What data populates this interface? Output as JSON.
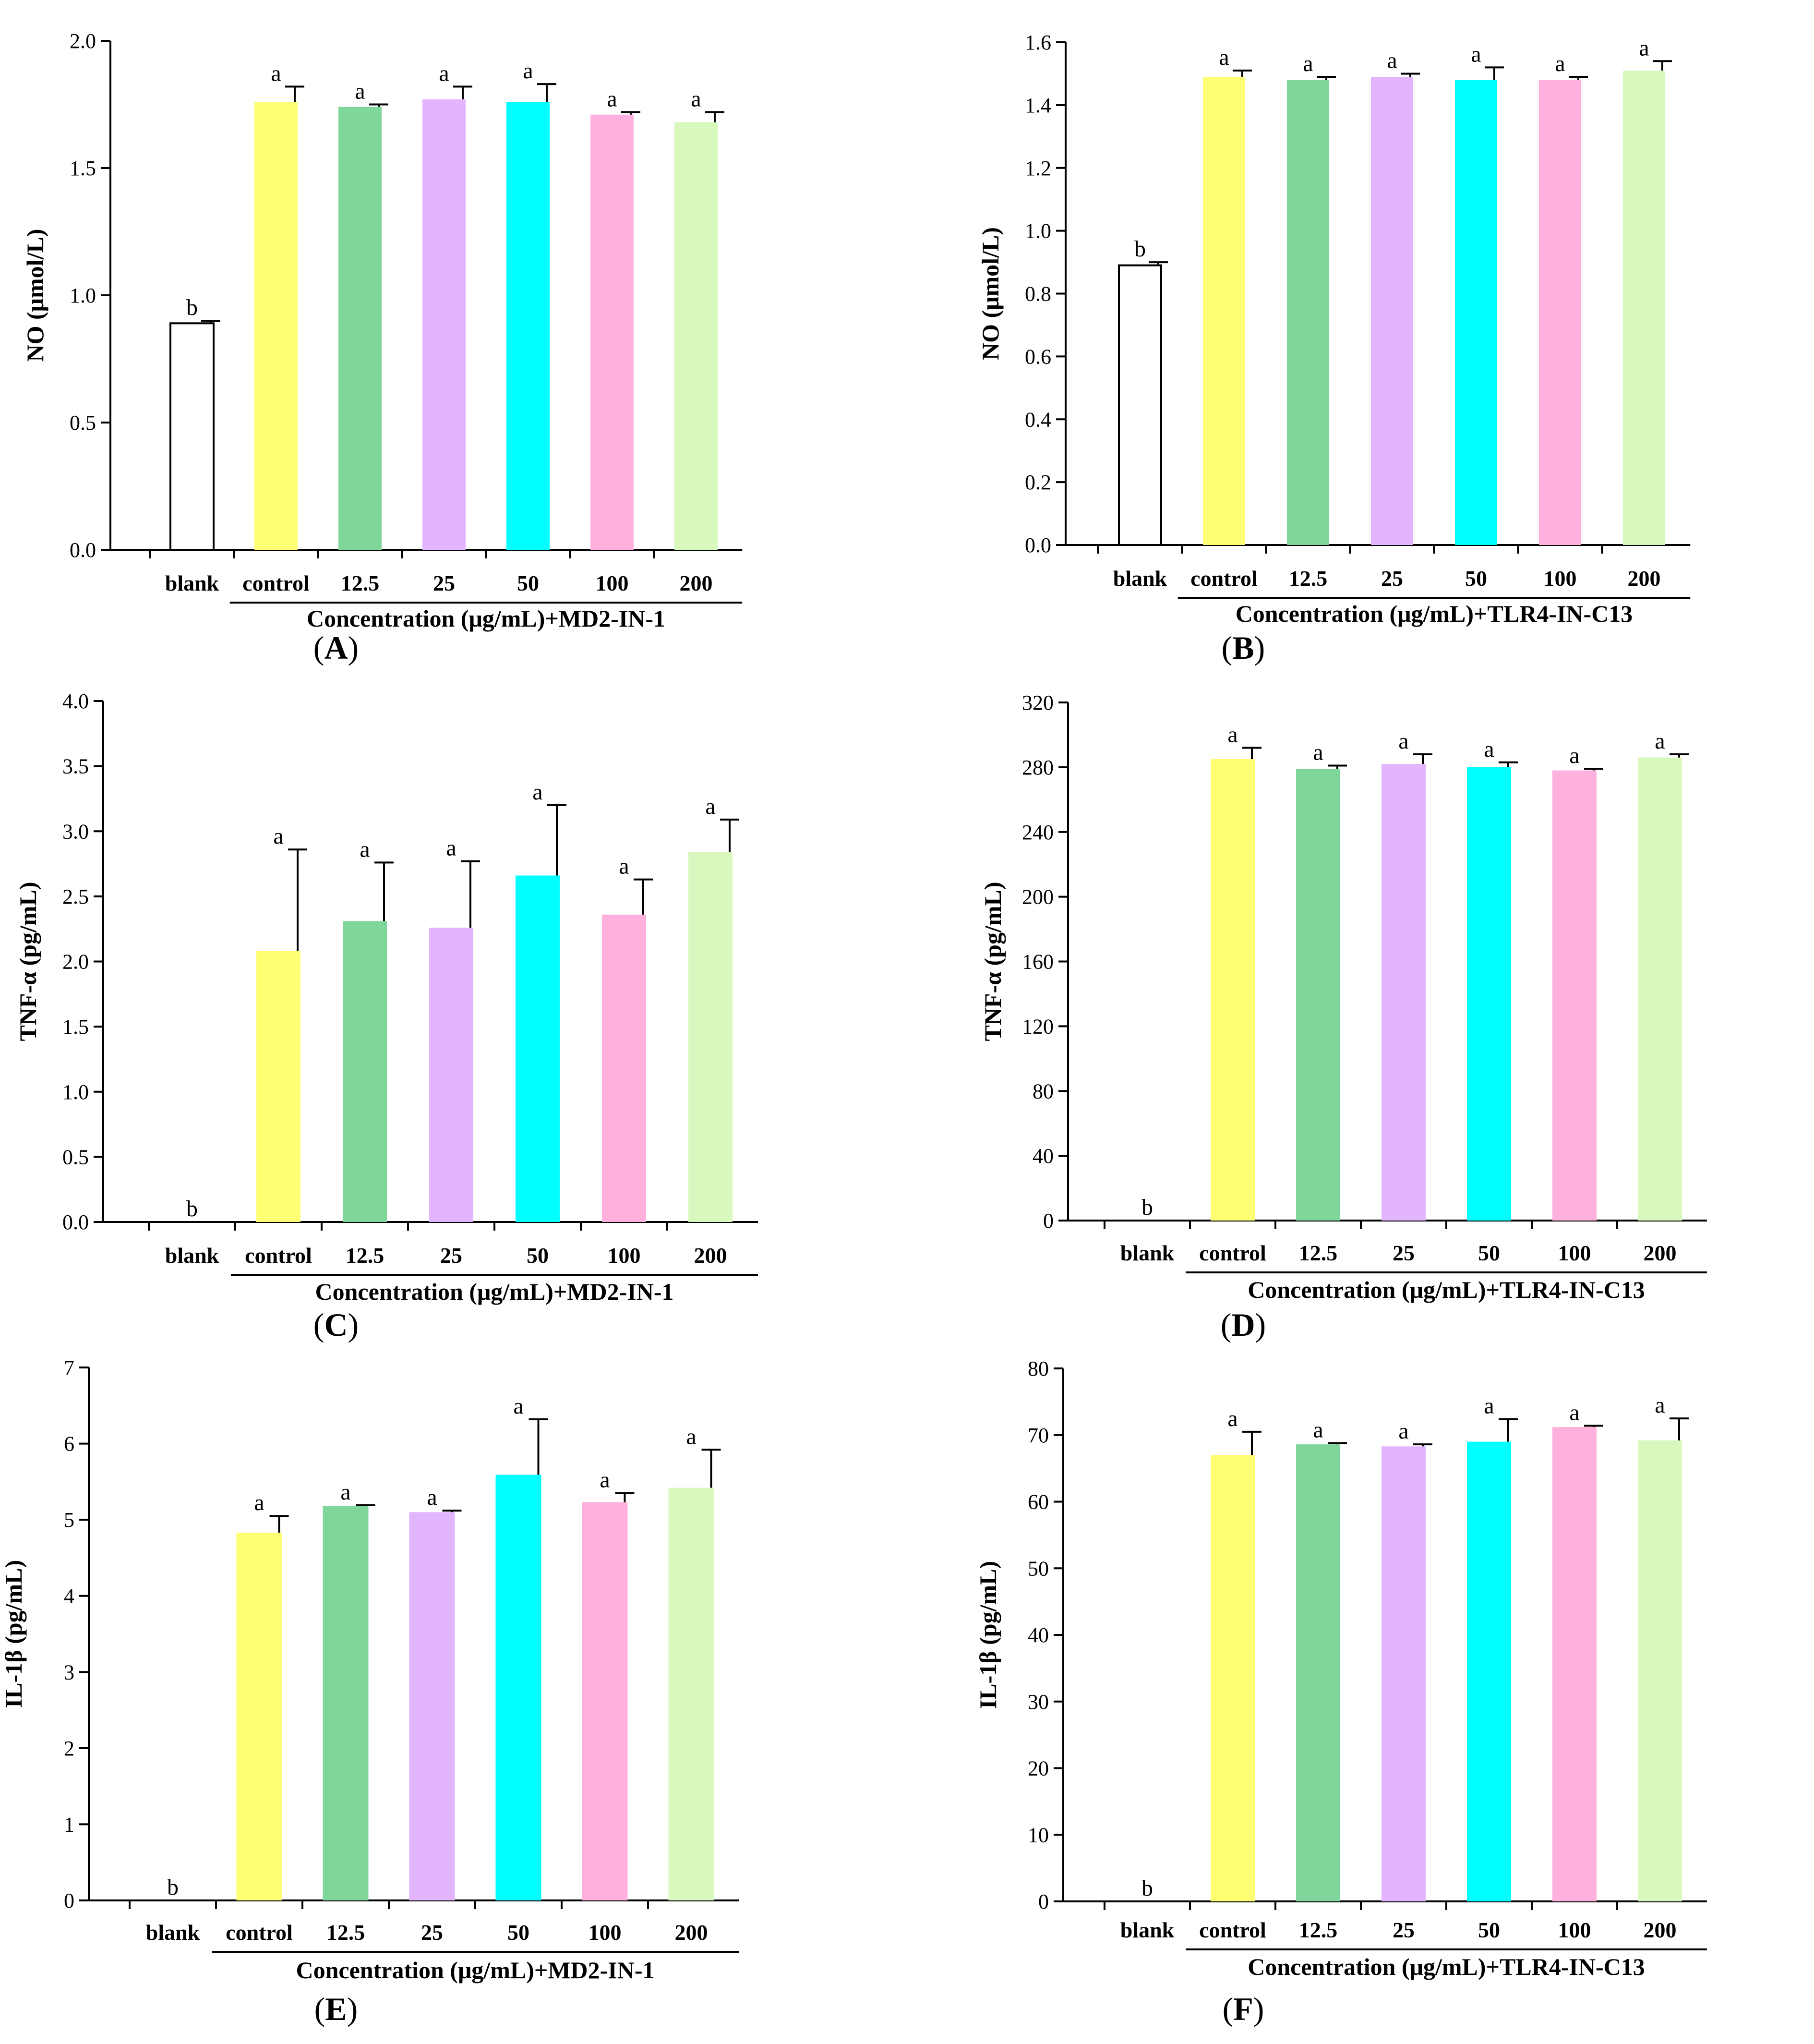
{
  "colors": {
    "blank": "#ffffff",
    "control": "#ffff73",
    "12.5": "#7ed69b",
    "25": "#e3b5ff",
    "50": "#00ffff",
    "100": "#ffb1dd",
    "200": "#d8f8be"
  },
  "chart_data": [
    {
      "type": "bar",
      "panel": "A",
      "ylabel": "NO (μmol/L)",
      "xlabel": "Concentration (μg/mL)+MD2-IN-1",
      "categories": [
        "blank",
        "control",
        "12.5",
        "25",
        "50",
        "100",
        "200"
      ],
      "values": [
        0.89,
        1.76,
        1.74,
        1.77,
        1.76,
        1.71,
        1.68
      ],
      "errors": [
        0.01,
        0.06,
        0.01,
        0.05,
        0.07,
        0.01,
        0.04
      ],
      "letters": [
        "b",
        "a",
        "a",
        "a",
        "a",
        "a",
        "a"
      ],
      "ylim": [
        0,
        2.0
      ],
      "yticks": [
        "0.0",
        "0.5",
        "1.0",
        "1.5",
        "2.0"
      ],
      "ytick_values": [
        0,
        0.5,
        1.0,
        1.5,
        2.0
      ]
    },
    {
      "type": "bar",
      "panel": "B",
      "ylabel": "NO (μmol/L)",
      "xlabel": "Concentration (μg/mL)+TLR4-IN-C13",
      "categories": [
        "blank",
        "control",
        "12.5",
        "25",
        "50",
        "100",
        "200"
      ],
      "values": [
        0.89,
        1.49,
        1.48,
        1.49,
        1.48,
        1.48,
        1.51
      ],
      "errors": [
        0.01,
        0.02,
        0.01,
        0.01,
        0.04,
        0.01,
        0.03
      ],
      "letters": [
        "b",
        "a",
        "a",
        "a",
        "a",
        "a",
        "a"
      ],
      "ylim": [
        0,
        1.6
      ],
      "yticks": [
        "0.0",
        "0.2",
        "0.4",
        "0.6",
        "0.8",
        "1.0",
        "1.2",
        "1.4",
        "1.6"
      ],
      "ytick_values": [
        0,
        0.2,
        0.4,
        0.6,
        0.8,
        1.0,
        1.2,
        1.4,
        1.6
      ]
    },
    {
      "type": "bar",
      "panel": "C",
      "ylabel": "TNF-α (pg/mL)",
      "xlabel": "Concentration (μg/mL)+MD2-IN-1",
      "categories": [
        "blank",
        "control",
        "12.5",
        "25",
        "50",
        "100",
        "200"
      ],
      "values": [
        0,
        2.08,
        2.31,
        2.26,
        2.66,
        2.36,
        2.84
      ],
      "errors": [
        0,
        0.78,
        0.45,
        0.51,
        0.54,
        0.27,
        0.25
      ],
      "letters": [
        "b",
        "a",
        "a",
        "a",
        "a",
        "a",
        "a"
      ],
      "ylim": [
        0,
        4.0
      ],
      "yticks": [
        "0.0",
        "0.5",
        "1.0",
        "1.5",
        "2.0",
        "2.5",
        "3.0",
        "3.5",
        "4.0"
      ],
      "ytick_values": [
        0,
        0.5,
        1.0,
        1.5,
        2.0,
        2.5,
        3.0,
        3.5,
        4.0
      ]
    },
    {
      "type": "bar",
      "panel": "D",
      "ylabel": "TNF-α (pg/mL)",
      "xlabel": "Concentration (μg/mL)+TLR4-IN-C13",
      "categories": [
        "blank",
        "control",
        "12.5",
        "25",
        "50",
        "100",
        "200"
      ],
      "values": [
        0,
        285,
        279,
        282,
        280,
        278,
        286
      ],
      "errors": [
        0,
        7,
        2,
        6,
        3,
        1,
        2
      ],
      "letters": [
        "b",
        "a",
        "a",
        "a",
        "a",
        "a",
        "a"
      ],
      "ylim": [
        0,
        320
      ],
      "yticks": [
        "0",
        "40",
        "80",
        "120",
        "160",
        "200",
        "240",
        "280",
        "320"
      ],
      "ytick_values": [
        0,
        40,
        80,
        120,
        160,
        200,
        240,
        280,
        320
      ]
    },
    {
      "type": "bar",
      "panel": "E",
      "ylabel": "IL-1β (pg/mL)",
      "xlabel": "Concentration (μg/mL)+MD2-IN-1",
      "categories": [
        "blank",
        "control",
        "12.5",
        "25",
        "50",
        "100",
        "200"
      ],
      "values": [
        0,
        4.83,
        5.18,
        5.1,
        5.59,
        5.23,
        5.42
      ],
      "errors": [
        0,
        0.22,
        0.01,
        0.02,
        0.73,
        0.12,
        0.5
      ],
      "letters": [
        "b",
        "a",
        "a",
        "a",
        "a",
        "a",
        "a"
      ],
      "ylim": [
        0,
        7
      ],
      "yticks": [
        "0",
        "1",
        "2",
        "3",
        "4",
        "5",
        "6",
        "7"
      ],
      "ytick_values": [
        0,
        1,
        2,
        3,
        4,
        5,
        6,
        7
      ]
    },
    {
      "type": "bar",
      "panel": "F",
      "ylabel": "IL-1β (pg/mL)",
      "xlabel": "Concentration (μg/mL)+TLR4-IN-C13",
      "categories": [
        "blank",
        "control",
        "12.5",
        "25",
        "50",
        "100",
        "200"
      ],
      "values": [
        0,
        67,
        68.6,
        68.3,
        69,
        71.2,
        69.2
      ],
      "errors": [
        0,
        3.5,
        0.2,
        0.3,
        3.4,
        0.2,
        3.3
      ],
      "letters": [
        "b",
        "a",
        "a",
        "a",
        "a",
        "a",
        "a"
      ],
      "ylim": [
        0,
        80
      ],
      "yticks": [
        "0",
        "10",
        "20",
        "30",
        "40",
        "50",
        "60",
        "70",
        "80"
      ],
      "ytick_values": [
        0,
        10,
        20,
        30,
        40,
        50,
        60,
        70,
        80
      ]
    }
  ],
  "panel_labels": [
    "A",
    "B",
    "C",
    "D",
    "E",
    "F"
  ]
}
